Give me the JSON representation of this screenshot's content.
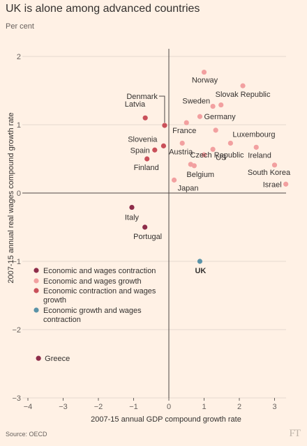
{
  "header": {
    "title": "UK is alone among advanced countries",
    "subtitle": "Per cent"
  },
  "footer": {
    "source": "Source: OECD",
    "logo": "FT"
  },
  "colors": {
    "background": "#fff1e5",
    "gridline": "#e6d9ce",
    "economic_and_wages_contraction": "#8e2d4a",
    "economic_and_wages_growth": "#f2a0a0",
    "economic_contraction_and_wages_growth": "#c9505a",
    "economic_growth_and_wages_contraction": "#5a93a8"
  },
  "chart_data": {
    "type": "scatter",
    "xlabel": "2007-15 annual GDP compound growth rate",
    "ylabel": "2007-15 annual real wages compound growth rate",
    "xlim": [
      -4,
      3.3
    ],
    "ylim": [
      -3,
      2.1
    ],
    "xticks": [
      -4,
      -3,
      -2,
      -1,
      0,
      1,
      2,
      3
    ],
    "yticks": [
      -3,
      -2,
      -1,
      0,
      1,
      2
    ],
    "grid": "horizontal",
    "legend": {
      "placement": "bottom-left",
      "entries": [
        {
          "key": "economic_and_wages_contraction",
          "label": "Economic and wages contraction"
        },
        {
          "key": "economic_and_wages_growth",
          "label": "Economic and wages growth"
        },
        {
          "key": "economic_contraction_and_wages_growth",
          "label": "Economic contraction and wages growth"
        },
        {
          "key": "economic_growth_and_wages_contraction",
          "label": "Economic growth and wages contraction"
        }
      ]
    },
    "points": [
      {
        "label": "Norway",
        "x": 1.0,
        "y": 1.77,
        "cat": "economic_and_wages_growth"
      },
      {
        "label": "Slovak Republic",
        "x": 2.1,
        "y": 1.57,
        "cat": "economic_and_wages_growth"
      },
      {
        "label": "Sweden",
        "x": 1.25,
        "y": 1.27,
        "cat": "economic_and_wages_growth"
      },
      {
        "label": "",
        "x": 1.48,
        "y": 1.29,
        "cat": "economic_and_wages_growth"
      },
      {
        "label": "Germany",
        "x": 0.88,
        "y": 1.12,
        "cat": "economic_and_wages_growth"
      },
      {
        "label": "France",
        "x": 0.5,
        "y": 1.03,
        "cat": "economic_and_wages_growth"
      },
      {
        "label": "",
        "x": 1.33,
        "y": 0.92,
        "cat": "economic_and_wages_growth"
      },
      {
        "label": "Luxembourg",
        "x": 1.75,
        "y": 0.73,
        "cat": "economic_and_wages_growth"
      },
      {
        "label": "Austria",
        "x": 0.38,
        "y": 0.73,
        "cat": "economic_and_wages_growth"
      },
      {
        "label": "US",
        "x": 1.25,
        "y": 0.64,
        "cat": "economic_and_wages_growth"
      },
      {
        "label": "Ireland",
        "x": 2.48,
        "y": 0.67,
        "cat": "economic_and_wages_growth"
      },
      {
        "label": "Czech Republic",
        "x": 1.0,
        "y": 0.56,
        "cat": "economic_and_wages_growth"
      },
      {
        "label": "",
        "x": 0.62,
        "y": 0.42,
        "cat": "economic_and_wages_growth"
      },
      {
        "label": "Belgium",
        "x": 0.72,
        "y": 0.4,
        "cat": "economic_and_wages_growth"
      },
      {
        "label": "South Korea",
        "x": 3.0,
        "y": 0.41,
        "cat": "economic_and_wages_growth"
      },
      {
        "label": "Japan",
        "x": 0.15,
        "y": 0.19,
        "cat": "economic_and_wages_growth"
      },
      {
        "label": "Israel",
        "x": 3.32,
        "y": 0.13,
        "cat": "economic_and_wages_growth"
      },
      {
        "label": "Denmark",
        "x": -0.12,
        "y": 0.99,
        "cat": "economic_contraction_and_wages_growth"
      },
      {
        "label": "Latvia",
        "x": -0.67,
        "y": 1.1,
        "cat": "economic_contraction_and_wages_growth"
      },
      {
        "label": "Slovenia",
        "x": -0.15,
        "y": 0.69,
        "cat": "economic_contraction_and_wages_growth"
      },
      {
        "label": "Spain",
        "x": -0.4,
        "y": 0.63,
        "cat": "economic_contraction_and_wages_growth"
      },
      {
        "label": "Finland",
        "x": -0.62,
        "y": 0.5,
        "cat": "economic_contraction_and_wages_growth"
      },
      {
        "label": "Italy",
        "x": -1.05,
        "y": -0.21,
        "cat": "economic_and_wages_contraction"
      },
      {
        "label": "Portugal",
        "x": -0.68,
        "y": -0.5,
        "cat": "economic_and_wages_contraction"
      },
      {
        "label": "Greece",
        "x": -3.7,
        "y": -2.42,
        "cat": "economic_and_wages_contraction"
      },
      {
        "label": "UK",
        "x": 0.88,
        "y": -1.0,
        "cat": "economic_growth_and_wages_contraction"
      }
    ]
  }
}
